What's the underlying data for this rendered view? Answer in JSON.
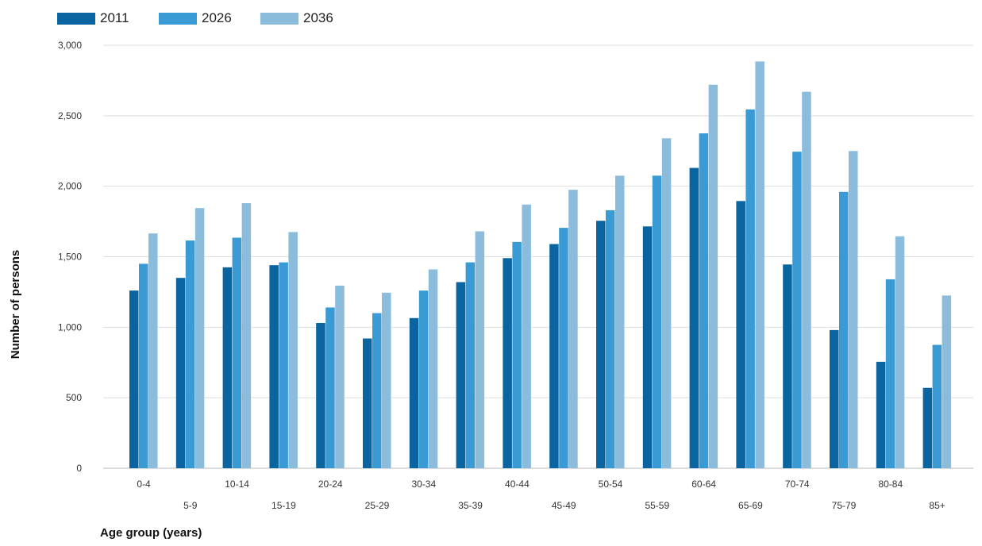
{
  "chart_data": {
    "type": "bar",
    "title": "",
    "xlabel": "Age group (years)",
    "ylabel": "Number of persons",
    "ylim": [
      0,
      3000
    ],
    "yticks": [
      0,
      500,
      1000,
      1500,
      2000,
      2500,
      3000
    ],
    "ytick_labels": [
      "0",
      "500",
      "1,000",
      "1,500",
      "2,000",
      "2,500",
      "3,000"
    ],
    "grid": true,
    "legend_position": "top-left",
    "categories": [
      "0-4",
      "5-9",
      "10-14",
      "15-19",
      "20-24",
      "25-29",
      "30-34",
      "35-39",
      "40-44",
      "45-49",
      "50-54",
      "55-59",
      "60-64",
      "65-69",
      "70-74",
      "75-79",
      "80-84",
      "85+"
    ],
    "series": [
      {
        "name": "2011",
        "color": "#0a64a0",
        "values": [
          1260,
          1350,
          1425,
          1440,
          1030,
          920,
          1065,
          1320,
          1490,
          1590,
          1755,
          1715,
          2130,
          1895,
          1445,
          980,
          755,
          570
        ]
      },
      {
        "name": "2026",
        "color": "#3a9ad4",
        "values": [
          1450,
          1615,
          1635,
          1460,
          1140,
          1100,
          1260,
          1460,
          1605,
          1705,
          1830,
          2075,
          2375,
          2545,
          2245,
          1960,
          1340,
          875
        ]
      },
      {
        "name": "2036",
        "color": "#8bbcdc",
        "values": [
          1665,
          1845,
          1880,
          1675,
          1295,
          1245,
          1410,
          1680,
          1870,
          1975,
          2075,
          2340,
          2720,
          2885,
          2670,
          2250,
          1645,
          1225
        ]
      }
    ]
  }
}
